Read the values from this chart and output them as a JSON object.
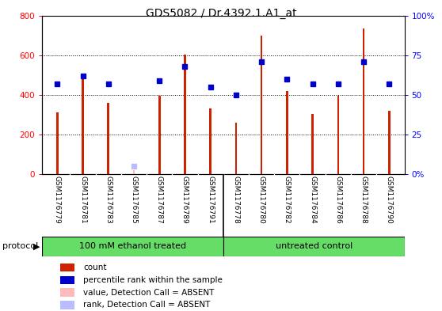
{
  "title": "GDS5082 / Dr.4392.1.A1_at",
  "samples": [
    "GSM1176779",
    "GSM1176781",
    "GSM1176783",
    "GSM1176785",
    "GSM1176787",
    "GSM1176789",
    "GSM1176791",
    "GSM1176778",
    "GSM1176780",
    "GSM1176782",
    "GSM1176784",
    "GSM1176786",
    "GSM1176788",
    "GSM1176790"
  ],
  "counts": [
    310,
    490,
    360,
    20,
    395,
    605,
    330,
    260,
    700,
    420,
    305,
    395,
    735,
    320
  ],
  "ranks": [
    57,
    62,
    57,
    null,
    59,
    68,
    55,
    50,
    71,
    60,
    57,
    57,
    71,
    57
  ],
  "absent_value": [
    null,
    null,
    null,
    20,
    null,
    null,
    null,
    null,
    null,
    null,
    null,
    null,
    null,
    null
  ],
  "absent_rank": [
    null,
    null,
    null,
    5,
    null,
    null,
    null,
    null,
    null,
    null,
    null,
    null,
    null,
    null
  ],
  "group1_count": 7,
  "group2_count": 7,
  "group1_label": "100 mM ethanol treated",
  "group2_label": "untreated control",
  "protocol_label": "protocol",
  "ylim_left": [
    0,
    800
  ],
  "ylim_right": [
    0,
    100
  ],
  "yticks_left": [
    0,
    200,
    400,
    600,
    800
  ],
  "ytick_labels_left": [
    "0",
    "200",
    "400",
    "600",
    "800"
  ],
  "yticks_right": [
    0,
    25,
    50,
    75,
    100
  ],
  "ytick_labels_right": [
    "0%",
    "25",
    "50",
    "75",
    "100%"
  ],
  "bar_color": "#cc2200",
  "rank_color": "#0000cc",
  "absent_bar_color": "#ffbbbb",
  "absent_rank_color": "#bbbbff",
  "bg_color": "#ffffff",
  "tick_label_area_color": "#c8c8c8",
  "group_bg_color": "#66dd66",
  "bar_width": 0.08,
  "rank_marker_size": 5,
  "legend_items": [
    {
      "label": "count",
      "color": "#cc2200"
    },
    {
      "label": "percentile rank within the sample",
      "color": "#0000cc"
    },
    {
      "label": "value, Detection Call = ABSENT",
      "color": "#ffbbbb"
    },
    {
      "label": "rank, Detection Call = ABSENT",
      "color": "#bbbbff"
    }
  ]
}
